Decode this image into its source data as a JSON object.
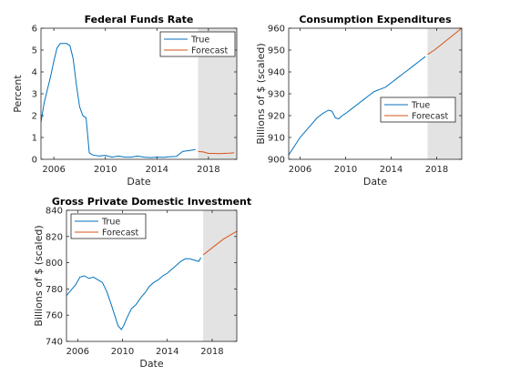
{
  "chart_data": [
    {
      "type": "line",
      "title": "Federal Funds Rate",
      "xlabel": "Date",
      "ylabel": "Percent",
      "xlim": [
        2005.0,
        2020.2
      ],
      "ylim": [
        0,
        6
      ],
      "xticks": [
        2006,
        2010,
        2014,
        2018
      ],
      "xtick_labels": [
        "2006",
        "2010",
        "2014",
        "2018"
      ],
      "yticks": [
        0,
        1,
        2,
        3,
        4,
        5,
        6
      ],
      "ytick_labels": [
        "0",
        "1",
        "2",
        "3",
        "4",
        "5",
        "6"
      ],
      "forecast_region": [
        2017.2,
        2020.2
      ],
      "legend_placement": "top-right",
      "series": [
        {
          "name": "True",
          "color": "#0072bd",
          "x": [
            2005.0,
            2005.25,
            2005.5,
            2005.75,
            2006.0,
            2006.25,
            2006.5,
            2006.75,
            2007.0,
            2007.25,
            2007.5,
            2007.75,
            2008.0,
            2008.25,
            2008.5,
            2008.75,
            2009.0,
            2009.5,
            2010.0,
            2010.5,
            2011.0,
            2011.5,
            2012.0,
            2012.5,
            2013.0,
            2013.5,
            2014.0,
            2014.5,
            2015.0,
            2015.5,
            2016.0,
            2016.5,
            2017.0
          ],
          "y": [
            1.7,
            2.6,
            3.2,
            3.8,
            4.5,
            5.1,
            5.3,
            5.3,
            5.3,
            5.2,
            4.6,
            3.4,
            2.4,
            2.0,
            1.9,
            0.3,
            0.2,
            0.15,
            0.18,
            0.1,
            0.15,
            0.1,
            0.1,
            0.15,
            0.1,
            0.08,
            0.1,
            0.09,
            0.12,
            0.13,
            0.36,
            0.4,
            0.45
          ]
        },
        {
          "name": "Forecast",
          "color": "#d95319",
          "x": [
            2017.2,
            2017.6,
            2018.0,
            2018.4,
            2018.8,
            2019.2,
            2019.6,
            2020.0
          ],
          "y": [
            0.36,
            0.34,
            0.27,
            0.27,
            0.26,
            0.27,
            0.28,
            0.3
          ]
        }
      ]
    },
    {
      "type": "line",
      "title": "Consumption Expenditures",
      "xlabel": "Date",
      "ylabel": "Billions of $ (scaled)",
      "xlim": [
        2005.0,
        2020.2
      ],
      "ylim": [
        900,
        960
      ],
      "xticks": [
        2006,
        2010,
        2014,
        2018
      ],
      "xtick_labels": [
        "2006",
        "2010",
        "2014",
        "2018"
      ],
      "yticks": [
        900,
        910,
        920,
        930,
        940,
        950,
        960
      ],
      "ytick_labels": [
        "900",
        "910",
        "920",
        "930",
        "940",
        "950",
        "960"
      ],
      "forecast_region": [
        2017.2,
        2020.2
      ],
      "legend_placement": "middle-right",
      "series": [
        {
          "name": "True",
          "color": "#0072bd",
          "x": [
            2005.0,
            2005.5,
            2006.0,
            2006.5,
            2007.0,
            2007.5,
            2008.0,
            2008.5,
            2008.8,
            2009.1,
            2009.4,
            2009.7,
            2010.0,
            2010.5,
            2011.0,
            2011.5,
            2012.0,
            2012.5,
            2013.0,
            2013.5,
            2014.0,
            2014.5,
            2015.0,
            2015.5,
            2016.0,
            2016.5,
            2017.0
          ],
          "y": [
            902,
            906,
            910,
            913,
            916,
            919,
            921,
            922.5,
            922,
            919,
            918.5,
            920,
            921,
            923,
            925,
            927,
            929,
            931,
            932,
            933,
            935,
            937,
            939,
            941,
            943,
            945,
            947
          ]
        },
        {
          "name": "Forecast",
          "color": "#d95319",
          "x": [
            2017.2,
            2017.8,
            2018.4,
            2019.0,
            2019.6,
            2020.2
          ],
          "y": [
            948,
            950,
            952.5,
            955,
            957.5,
            960
          ]
        }
      ]
    },
    {
      "type": "line",
      "title": "Gross Private Domestic Investment",
      "xlabel": "Date",
      "ylabel": "Billions of $ (scaled)",
      "xlim": [
        2005.0,
        2020.2
      ],
      "ylim": [
        740,
        840
      ],
      "xticks": [
        2006,
        2010,
        2014,
        2018
      ],
      "xtick_labels": [
        "2006",
        "2010",
        "2014",
        "2018"
      ],
      "yticks": [
        740,
        760,
        780,
        800,
        820,
        840
      ],
      "ytick_labels": [
        "740",
        "760",
        "780",
        "800",
        "820",
        "840"
      ],
      "forecast_region": [
        2017.2,
        2020.2
      ],
      "legend_placement": "top-left",
      "series": [
        {
          "name": "True",
          "color": "#0072bd",
          "x": [
            2005.0,
            2005.4,
            2005.8,
            2006.2,
            2006.6,
            2007.0,
            2007.4,
            2007.8,
            2008.2,
            2008.6,
            2009.0,
            2009.3,
            2009.6,
            2009.9,
            2010.1,
            2010.4,
            2010.8,
            2011.2,
            2011.6,
            2012.0,
            2012.4,
            2012.8,
            2013.2,
            2013.6,
            2014.0,
            2014.4,
            2014.8,
            2015.2,
            2015.6,
            2016.0,
            2016.4,
            2016.8,
            2017.0
          ],
          "y": [
            775,
            779,
            783,
            789,
            790,
            788,
            789,
            787,
            785,
            778,
            768,
            760,
            752,
            749,
            752,
            758,
            765,
            768,
            773,
            777,
            782,
            785,
            787,
            790,
            792,
            795,
            798,
            801,
            803,
            803,
            802,
            801,
            804
          ]
        },
        {
          "name": "Forecast",
          "color": "#d95319",
          "x": [
            2017.2,
            2017.8,
            2018.4,
            2019.0,
            2019.6,
            2020.2
          ],
          "y": [
            806,
            810,
            814,
            818,
            821,
            824
          ]
        }
      ]
    }
  ]
}
